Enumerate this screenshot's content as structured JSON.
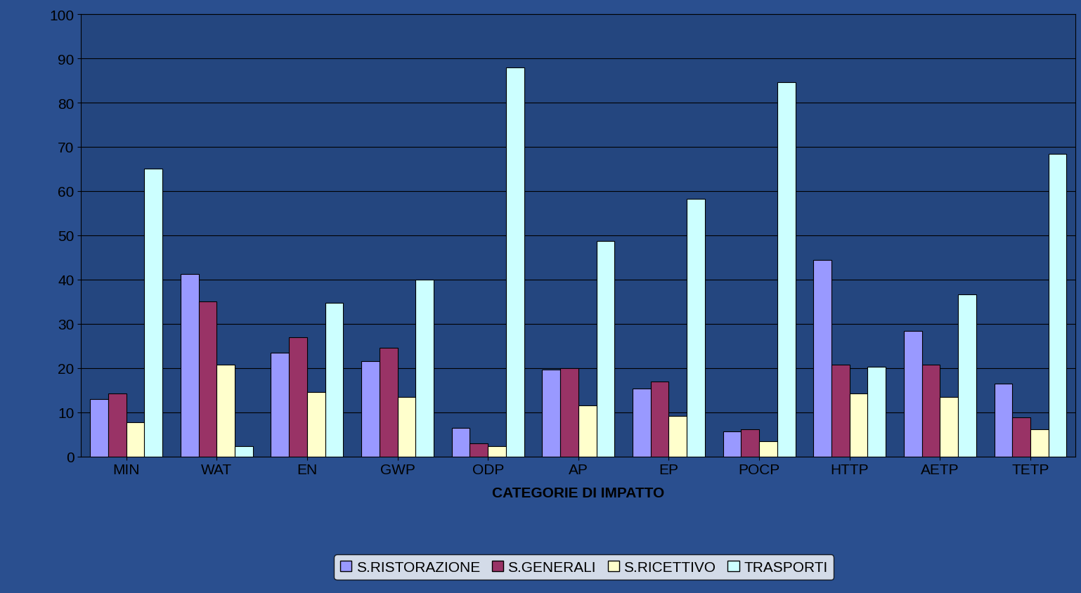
{
  "chart_data": {
    "type": "bar",
    "x_label": "CATEGORIE DI IMPATTO",
    "categories": [
      "MIN",
      "WAT",
      "EN",
      "GWP",
      "ODP",
      "AP",
      "EP",
      "POCP",
      "HTTP",
      "AETP",
      "TETP"
    ],
    "series": [
      {
        "name": "S.RISTORAZIONE",
        "color": "#9999ff",
        "values": [
          13,
          41.2,
          23.5,
          21.5,
          6.5,
          19.6,
          15.3,
          5.7,
          44.4,
          28.4,
          16.5
        ]
      },
      {
        "name": "S.GENERALI",
        "color": "#993366",
        "values": [
          14.2,
          35,
          26.9,
          24.6,
          3,
          20,
          16.9,
          6.1,
          20.8,
          20.8,
          8.8
        ]
      },
      {
        "name": "S.RICETTIVO",
        "color": "#ffffcc",
        "values": [
          7.7,
          20.8,
          14.6,
          13.4,
          2.3,
          11.6,
          9.2,
          3.4,
          14.2,
          13.4,
          6.1
        ]
      },
      {
        "name": "TRASPORTI",
        "color": "#ccffff",
        "values": [
          65,
          2.3,
          34.7,
          40,
          88,
          48.7,
          58.3,
          84.6,
          20.3,
          36.6,
          68.4
        ]
      }
    ],
    "ylim": [
      0,
      100
    ],
    "yticks": [
      0,
      10,
      20,
      30,
      40,
      50,
      60,
      70,
      80,
      90,
      100
    ],
    "grid": true,
    "legend": "lower center"
  }
}
